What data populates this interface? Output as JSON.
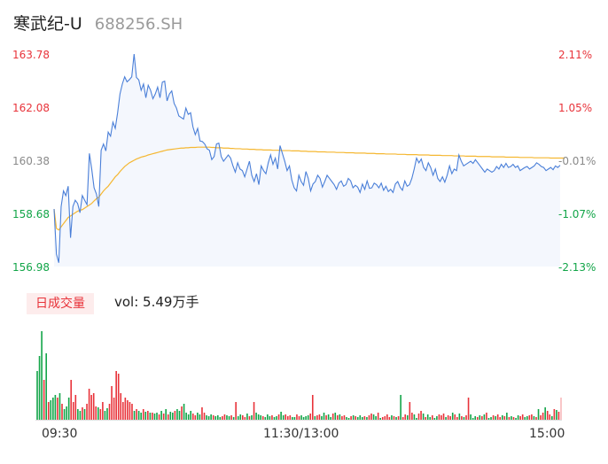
{
  "header": {
    "name": "寒武纪-U",
    "code": "688256.SH"
  },
  "volume_panel": {
    "badge": "日成交量",
    "vol_label": "vol: 5.49万手"
  },
  "colors": {
    "price_line": "#4a7fd8",
    "avg_line": "#f5b731",
    "up": "#e8333a",
    "down": "#12a548",
    "neutral": "#8a8a8a",
    "area_fill": "#f4f7fd"
  },
  "chart_data": {
    "type": "line",
    "x_tick_labels": [
      "09:30",
      "11:30/13:00",
      "15:00"
    ],
    "y_left_ticks": [
      "163.78",
      "162.08",
      "160.38",
      "158.68",
      "156.98"
    ],
    "y_right_ticks": [
      "2.11%",
      "1.05%",
      "-0.01%",
      "-1.07%",
      "-2.13%"
    ],
    "ylim": [
      156.98,
      163.78
    ],
    "price": [
      158.82,
      157.38,
      157.1,
      158.9,
      159.4,
      159.25,
      159.55,
      157.9,
      158.9,
      159.1,
      159.0,
      158.7,
      159.25,
      159.1,
      158.96,
      160.6,
      160.1,
      159.5,
      159.3,
      158.9,
      160.7,
      160.9,
      160.68,
      161.28,
      161.15,
      161.6,
      161.4,
      161.9,
      162.5,
      162.82,
      163.05,
      162.89,
      162.96,
      163.05,
      163.78,
      163.03,
      162.95,
      162.62,
      162.82,
      162.38,
      162.78,
      162.62,
      162.35,
      162.5,
      162.72,
      162.38,
      162.88,
      162.91,
      162.28,
      162.5,
      162.6,
      162.2,
      162.05,
      161.8,
      161.75,
      161.7,
      162.05,
      161.85,
      161.9,
      161.45,
      161.2,
      161.4,
      161.0,
      160.98,
      160.9,
      160.75,
      160.7,
      160.4,
      160.5,
      160.9,
      160.93,
      160.5,
      160.35,
      160.45,
      160.55,
      160.45,
      160.2,
      160.0,
      160.3,
      160.1,
      160.05,
      159.85,
      160.1,
      160.35,
      159.9,
      159.7,
      159.95,
      159.6,
      160.2,
      160.05,
      159.95,
      160.3,
      160.55,
      160.25,
      160.45,
      160.1,
      160.85,
      160.6,
      160.35,
      160.05,
      160.2,
      159.75,
      159.5,
      159.4,
      159.9,
      159.7,
      159.58,
      160.02,
      159.8,
      159.4,
      159.62,
      159.7,
      159.9,
      159.8,
      159.52,
      159.7,
      159.9,
      159.8,
      159.7,
      159.6,
      159.45,
      159.65,
      159.72,
      159.55,
      159.6,
      159.8,
      159.72,
      159.5,
      159.58,
      159.52,
      159.35,
      159.62,
      159.45,
      159.72,
      159.48,
      159.5,
      159.65,
      159.6,
      159.5,
      159.65,
      159.42,
      159.55,
      159.38,
      159.45,
      159.35,
      159.62,
      159.7,
      159.52,
      159.42,
      159.72,
      159.55,
      159.6,
      159.8,
      160.1,
      160.45,
      160.3,
      160.42,
      160.15,
      160.05,
      160.3,
      160.15,
      159.9,
      160.1,
      159.8,
      159.7,
      159.85,
      159.68,
      159.9,
      160.2,
      159.95,
      160.1,
      160.05,
      160.55,
      160.35,
      160.2,
      160.25,
      160.3,
      160.35,
      160.28,
      160.4,
      160.3,
      160.2,
      160.1,
      160.0,
      160.1,
      160.05,
      160.0,
      160.05,
      160.18,
      160.1,
      160.25,
      160.15,
      160.28,
      160.15,
      160.18,
      160.25,
      160.15,
      160.2,
      160.05,
      160.1,
      160.15,
      160.18,
      160.1,
      160.15,
      160.2,
      160.3,
      160.25,
      160.18,
      160.15,
      160.05,
      160.1,
      160.15,
      160.08,
      160.2,
      160.15,
      160.22
    ],
    "avg": [
      158.82,
      158.2,
      158.15,
      158.25,
      158.35,
      158.45,
      158.55,
      158.6,
      158.65,
      158.7,
      158.75,
      158.78,
      158.8,
      158.85,
      158.9,
      158.95,
      159.0,
      159.08,
      159.15,
      159.2,
      159.3,
      159.4,
      159.48,
      159.55,
      159.65,
      159.75,
      159.85,
      159.92,
      160.02,
      160.1,
      160.18,
      160.24,
      160.3,
      160.34,
      160.38,
      160.42,
      160.45,
      160.48,
      160.5,
      160.52,
      160.55,
      160.57,
      160.59,
      160.61,
      160.63,
      160.65,
      160.67,
      160.69,
      160.71,
      160.72,
      160.73,
      160.74,
      160.75,
      160.76,
      160.77,
      160.77,
      160.78,
      160.78,
      160.79,
      160.79,
      160.79,
      160.8,
      160.8,
      160.8,
      160.8,
      160.8,
      160.8,
      160.79,
      160.79,
      160.78,
      160.78,
      160.78,
      160.77,
      160.77,
      160.77,
      160.76,
      160.76,
      160.75,
      160.75,
      160.75,
      160.74,
      160.74,
      160.74,
      160.73,
      160.73,
      160.73,
      160.72,
      160.72,
      160.72,
      160.71,
      160.71,
      160.71,
      160.71,
      160.7,
      160.7,
      160.7,
      160.7,
      160.69,
      160.69,
      160.69,
      160.69,
      160.68,
      160.68,
      160.68,
      160.68,
      160.67,
      160.67,
      160.67,
      160.66,
      160.66,
      160.66,
      160.66,
      160.65,
      160.65,
      160.65,
      160.65,
      160.64,
      160.64,
      160.64,
      160.64,
      160.63,
      160.63,
      160.63,
      160.63,
      160.62,
      160.62,
      160.62,
      160.62,
      160.61,
      160.61,
      160.61,
      160.61,
      160.61,
      160.6,
      160.6,
      160.6,
      160.6,
      160.59,
      160.59,
      160.59,
      160.59,
      160.58,
      160.58,
      160.58,
      160.58,
      160.58,
      160.57,
      160.57,
      160.57,
      160.57,
      160.56,
      160.56,
      160.56,
      160.56,
      160.56,
      160.55,
      160.55,
      160.55,
      160.55,
      160.55,
      160.54,
      160.54,
      160.54,
      160.54,
      160.54,
      160.53,
      160.53,
      160.53,
      160.53,
      160.53,
      160.52,
      160.52,
      160.52,
      160.52,
      160.52,
      160.51,
      160.51,
      160.51,
      160.51,
      160.51,
      160.5,
      160.5,
      160.5,
      160.5,
      160.5,
      160.5,
      160.49,
      160.49,
      160.49,
      160.49,
      160.49,
      160.49,
      160.48,
      160.48,
      160.48,
      160.48,
      160.48,
      160.48,
      160.47,
      160.47,
      160.47,
      160.47,
      160.47,
      160.47,
      160.46,
      160.46,
      160.46,
      160.46,
      160.46,
      160.46,
      160.46,
      160.45,
      160.45,
      160.45,
      160.45,
      160.45,
      160.45,
      160.45
    ],
    "volume": [
      55,
      72,
      100,
      45,
      75,
      20,
      22,
      25,
      28,
      25,
      30,
      18,
      12,
      15,
      25,
      45,
      20,
      28,
      12,
      10,
      14,
      12,
      18,
      35,
      28,
      30,
      15,
      14,
      12,
      20,
      10,
      13,
      18,
      38,
      25,
      55,
      52,
      30,
      20,
      25,
      22,
      20,
      18,
      10,
      12,
      10,
      8,
      12,
      9,
      10,
      8,
      8,
      7,
      8,
      6,
      10,
      7,
      12,
      6,
      9,
      8,
      10,
      12,
      10,
      15,
      18,
      8,
      6,
      10,
      7,
      5,
      8,
      6,
      14,
      8,
      5,
      4,
      6,
      5,
      4,
      5,
      3,
      4,
      6,
      5,
      4,
      5,
      3,
      20,
      4,
      6,
      5,
      3,
      7,
      4,
      5,
      20,
      8,
      6,
      5,
      4,
      3,
      6,
      4,
      5,
      3,
      4,
      6,
      9,
      5,
      6,
      4,
      5,
      3,
      3,
      6,
      4,
      5,
      3,
      4,
      5,
      7,
      28,
      4,
      5,
      6,
      4,
      8,
      5,
      6,
      3,
      7,
      8,
      5,
      6,
      4,
      5,
      3,
      2,
      4,
      5,
      4,
      3,
      5,
      3,
      4,
      3,
      5,
      7,
      6,
      4,
      8,
      2,
      3,
      4,
      6,
      3,
      5,
      4,
      3,
      4,
      28,
      3,
      6,
      5,
      20,
      8,
      6,
      2,
      7,
      10,
      7,
      3,
      6,
      3,
      5,
      2,
      4,
      6,
      5,
      7,
      3,
      5,
      4,
      8,
      6,
      3,
      7,
      4,
      3,
      5,
      25,
      6,
      2,
      4,
      3,
      5,
      4,
      6,
      8,
      2,
      3,
      5,
      4,
      6,
      3,
      5,
      4,
      8,
      3,
      4,
      3,
      2,
      5,
      4,
      6,
      3,
      4,
      5,
      6,
      4,
      3,
      12,
      5,
      8,
      14,
      10,
      6,
      4,
      12,
      11,
      9,
      25
    ],
    "volume_colors": [
      "down",
      "down",
      "down",
      "up",
      "down",
      "up",
      "down",
      "down",
      "down",
      "up",
      "down",
      "up",
      "down",
      "down",
      "down",
      "up",
      "up",
      "up",
      "down",
      "down",
      "up",
      "down",
      "up",
      "up",
      "up",
      "up",
      "up",
      "down",
      "up",
      "up",
      "down",
      "down",
      "up",
      "up",
      "up",
      "up",
      "up",
      "up",
      "up",
      "up",
      "up",
      "up",
      "up",
      "down",
      "up",
      "down",
      "down",
      "up",
      "down",
      "up",
      "down",
      "up",
      "down",
      "down",
      "up",
      "down",
      "up",
      "down",
      "up",
      "down",
      "down",
      "up",
      "down",
      "down",
      "up",
      "down",
      "down",
      "down",
      "down",
      "up",
      "up",
      "down",
      "down",
      "up",
      "up",
      "down",
      "down",
      "down",
      "up",
      "down",
      "down",
      "down",
      "up",
      "up",
      "down",
      "down",
      "up",
      "down",
      "up",
      "down",
      "down",
      "up",
      "up",
      "down",
      "up",
      "down",
      "up",
      "down",
      "down",
      "down",
      "up",
      "down",
      "down",
      "down",
      "up",
      "down",
      "down",
      "up",
      "down",
      "down",
      "up",
      "up",
      "up",
      "down",
      "down",
      "up",
      "up",
      "down",
      "down",
      "down",
      "down",
      "up",
      "up",
      "down",
      "up",
      "up",
      "down",
      "down",
      "up",
      "down",
      "down",
      "up",
      "down",
      "up",
      "down",
      "up",
      "up",
      "down",
      "down",
      "up",
      "down",
      "up",
      "down",
      "down",
      "down",
      "up",
      "down",
      "up",
      "up",
      "down",
      "down",
      "up",
      "down",
      "up",
      "up",
      "up",
      "up",
      "down",
      "up",
      "down",
      "up",
      "down",
      "up",
      "up",
      "down",
      "up",
      "up",
      "down",
      "down",
      "up",
      "up",
      "down",
      "up",
      "down",
      "down",
      "up",
      "down",
      "down",
      "up",
      "up",
      "up",
      "down",
      "up",
      "up",
      "down",
      "up",
      "up",
      "down",
      "up",
      "down",
      "up",
      "up",
      "down",
      "down",
      "down",
      "up",
      "down",
      "up",
      "down",
      "up",
      "down",
      "down",
      "up",
      "down",
      "up",
      "up",
      "down",
      "up",
      "down",
      "up",
      "down",
      "up",
      "down",
      "down",
      "up",
      "up",
      "down",
      "down",
      "up",
      "up",
      "down",
      "up",
      "down",
      "up",
      "up",
      "down",
      "up",
      "up",
      "down",
      "up",
      "down",
      "up",
      "up",
      "up",
      "up"
    ],
    "volume_last_faded": true
  }
}
